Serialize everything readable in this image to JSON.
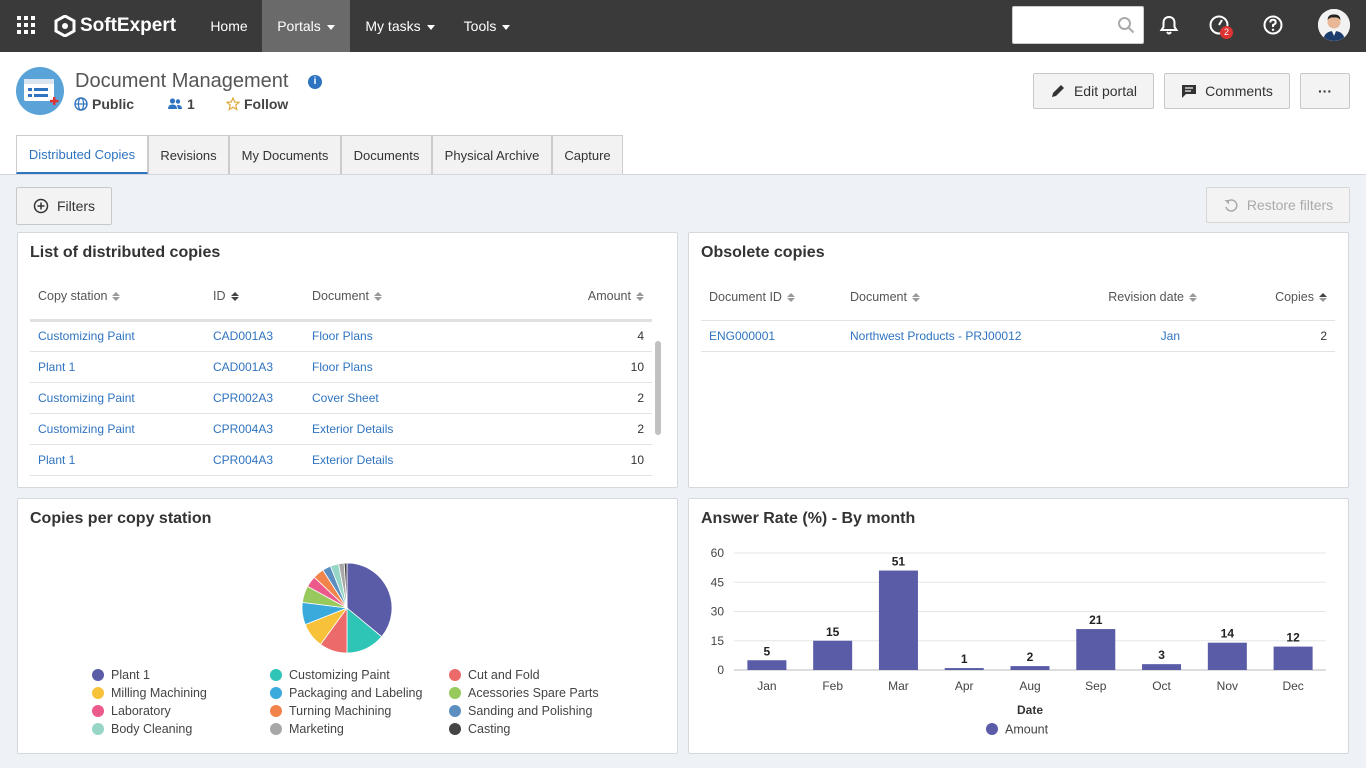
{
  "topbar": {
    "brand": "SoftExpert",
    "nav": [
      {
        "label": "Home"
      },
      {
        "label": "Portals"
      },
      {
        "label": "My tasks"
      },
      {
        "label": "Tools"
      }
    ],
    "notification_count": "2"
  },
  "header": {
    "title": "Document Management",
    "visibility": "Public",
    "members": "1",
    "follow": "Follow",
    "edit_label": "Edit portal",
    "comments_label": "Comments",
    "more_label": "···"
  },
  "tabs": [
    {
      "label": "Distributed Copies"
    },
    {
      "label": "Revisions"
    },
    {
      "label": "My Documents"
    },
    {
      "label": "Documents"
    },
    {
      "label": "Physical Archive"
    },
    {
      "label": "Capture"
    }
  ],
  "filters": {
    "filters_label": "Filters",
    "restore_label": "Restore filters"
  },
  "distributed": {
    "title": "List of distributed copies",
    "columns": [
      "Copy station",
      "ID",
      "Document",
      "Amount"
    ],
    "rows": [
      [
        "Customizing Paint",
        "CAD001A3",
        "Floor Plans",
        "4"
      ],
      [
        "Plant 1",
        "CAD001A3",
        "Floor Plans",
        "10"
      ],
      [
        "Customizing Paint",
        "CPR002A3",
        "Cover Sheet",
        "2"
      ],
      [
        "Customizing Paint",
        "CPR004A3",
        "Exterior Details",
        "2"
      ],
      [
        "Plant 1",
        "CPR004A3",
        "Exterior Details",
        "10"
      ]
    ]
  },
  "obsolete": {
    "title": "Obsolete copies",
    "columns": [
      "Document ID",
      "Document",
      "Revision date",
      "Copies"
    ],
    "rows": [
      [
        "ENG000001",
        "Northwest Products - PRJ00012",
        "Jan",
        "2"
      ]
    ]
  },
  "pie_panel": {
    "title": "Copies per copy station"
  },
  "bar_panel": {
    "title": "Answer Rate (%) - By month"
  },
  "chart_data": [
    {
      "type": "pie",
      "title": "Copies per copy station",
      "categories": [
        "Plant 1",
        "Customizing Paint",
        "Cut and Fold",
        "Milling Machining",
        "Packaging and Labeling",
        "Acessories Spare Parts",
        "Laboratory",
        "Turning Machining",
        "Sanding and Polishing",
        "Body Cleaning",
        "Marketing",
        "Casting"
      ],
      "values": [
        36,
        14,
        10,
        9,
        8,
        6,
        4,
        4,
        3,
        3,
        2,
        1
      ],
      "colors": [
        "#5a5ca8",
        "#2ec4b6",
        "#ec6a6a",
        "#f7c23a",
        "#3aa9dc",
        "#97c95c",
        "#ec5a8c",
        "#f2834a",
        "#5b8fbf",
        "#97d5c7",
        "#a7a7a7",
        "#444444"
      ],
      "legend": "bottom"
    },
    {
      "type": "bar",
      "title": "Answer Rate (%) - By month",
      "categories": [
        "Jan",
        "Feb",
        "Mar",
        "Apr",
        "Aug",
        "Sep",
        "Oct",
        "Nov",
        "Dec"
      ],
      "series": [
        {
          "name": "Amount",
          "values": [
            5,
            15,
            51,
            1,
            2,
            21,
            3,
            14,
            12
          ],
          "color": "#5a5ca8"
        }
      ],
      "xlabel": "Date",
      "ylabel": "",
      "ylim": [
        0,
        60
      ],
      "yticks": [
        0,
        15,
        30,
        45,
        60
      ],
      "grid": true,
      "legend": "bottom"
    }
  ]
}
